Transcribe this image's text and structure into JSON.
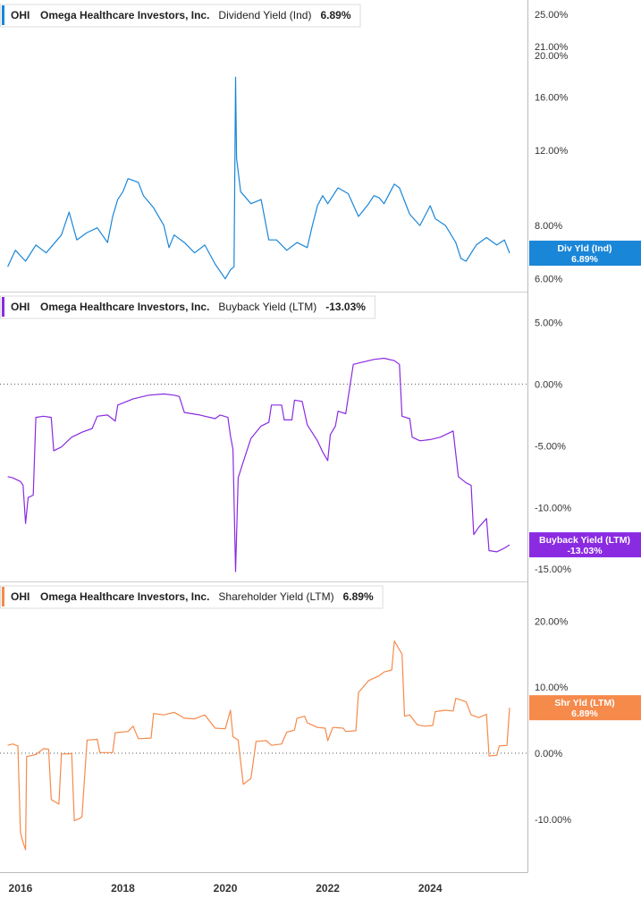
{
  "chart_data": [
    {
      "type": "line",
      "ticker": "OHI",
      "company": "Omega Healthcare Investors, Inc.",
      "metric": "Dividend Yield (Ind)",
      "current_value": "6.89%",
      "badge_label": "Div Yld (Ind)",
      "badge_value": "6.89%",
      "color": "#1a86d8",
      "scale": "log",
      "ylim": [
        5.6,
        27.0
      ],
      "y_ticks": [
        6,
        8,
        12,
        16,
        20,
        21,
        25
      ],
      "y_tick_labels": [
        "6.00%",
        "8.00%",
        "12.00%",
        "16.00%",
        "20.00%",
        "21.00%",
        "25.00%"
      ],
      "zero_line": false,
      "series": [
        {
          "values": [
            [
              2015.75,
              6.4
            ],
            [
              2015.9,
              7.0
            ],
            [
              2016.1,
              6.6
            ],
            [
              2016.3,
              7.2
            ],
            [
              2016.5,
              6.9
            ],
            [
              2016.8,
              7.6
            ],
            [
              2016.95,
              8.6
            ],
            [
              2017.1,
              7.4
            ],
            [
              2017.3,
              7.7
            ],
            [
              2017.5,
              7.9
            ],
            [
              2017.7,
              7.3
            ],
            [
              2017.8,
              8.4
            ],
            [
              2017.9,
              9.2
            ],
            [
              2018.0,
              9.6
            ],
            [
              2018.1,
              10.3
            ],
            [
              2018.3,
              10.1
            ],
            [
              2018.4,
              9.4
            ],
            [
              2018.6,
              8.8
            ],
            [
              2018.8,
              8.0
            ],
            [
              2018.9,
              7.1
            ],
            [
              2019.0,
              7.6
            ],
            [
              2019.2,
              7.3
            ],
            [
              2019.4,
              6.9
            ],
            [
              2019.6,
              7.2
            ],
            [
              2019.8,
              6.5
            ],
            [
              2020.0,
              6.0
            ],
            [
              2020.1,
              6.3
            ],
            [
              2020.17,
              6.4
            ],
            [
              2020.2,
              17.8
            ],
            [
              2020.22,
              11.5
            ],
            [
              2020.3,
              9.6
            ],
            [
              2020.5,
              9.0
            ],
            [
              2020.7,
              9.2
            ],
            [
              2020.85,
              7.4
            ],
            [
              2021.0,
              7.4
            ],
            [
              2021.2,
              7.0
            ],
            [
              2021.4,
              7.3
            ],
            [
              2021.6,
              7.1
            ],
            [
              2021.7,
              8.0
            ],
            [
              2021.8,
              8.9
            ],
            [
              2021.9,
              9.4
            ],
            [
              2022.0,
              9.0
            ],
            [
              2022.2,
              9.8
            ],
            [
              2022.4,
              9.5
            ],
            [
              2022.6,
              8.4
            ],
            [
              2022.8,
              9.0
            ],
            [
              2022.9,
              9.4
            ],
            [
              2023.0,
              9.3
            ],
            [
              2023.1,
              9.0
            ],
            [
              2023.3,
              10.0
            ],
            [
              2023.4,
              9.8
            ],
            [
              2023.6,
              8.5
            ],
            [
              2023.8,
              8.0
            ],
            [
              2024.0,
              8.9
            ],
            [
              2024.1,
              8.3
            ],
            [
              2024.3,
              8.0
            ],
            [
              2024.5,
              7.3
            ],
            [
              2024.6,
              6.7
            ],
            [
              2024.7,
              6.6
            ],
            [
              2024.9,
              7.2
            ],
            [
              2025.1,
              7.5
            ],
            [
              2025.3,
              7.2
            ],
            [
              2025.45,
              7.4
            ],
            [
              2025.55,
              6.89
            ]
          ]
        }
      ]
    },
    {
      "type": "line",
      "ticker": "OHI",
      "company": "Omega Healthcare Investors, Inc.",
      "metric": "Buyback Yield (LTM)",
      "current_value": "-13.03%",
      "badge_label": "Buyback Yield (LTM)",
      "badge_value": "-13.03%",
      "color": "#8a2be2",
      "scale": "linear",
      "ylim": [
        -16.0,
        7.5
      ],
      "y_ticks": [
        5,
        0,
        -5,
        -10,
        -15
      ],
      "y_tick_labels": [
        "5.00%",
        "0.00%",
        "-5.00%",
        "-10.00%",
        "-15.00%"
      ],
      "zero_line": true,
      "series": [
        {
          "values": [
            [
              2015.75,
              -7.5
            ],
            [
              2015.85,
              -7.6
            ],
            [
              2016.0,
              -7.9
            ],
            [
              2016.05,
              -8.2
            ],
            [
              2016.1,
              -11.3
            ],
            [
              2016.15,
              -9.2
            ],
            [
              2016.25,
              -9.0
            ],
            [
              2016.3,
              -2.7
            ],
            [
              2016.45,
              -2.6
            ],
            [
              2016.6,
              -2.7
            ],
            [
              2016.65,
              -5.4
            ],
            [
              2016.8,
              -5.1
            ],
            [
              2017.0,
              -4.3
            ],
            [
              2017.2,
              -3.9
            ],
            [
              2017.4,
              -3.6
            ],
            [
              2017.5,
              -2.6
            ],
            [
              2017.7,
              -2.5
            ],
            [
              2017.85,
              -3.0
            ],
            [
              2017.9,
              -1.7
            ],
            [
              2018.2,
              -1.2
            ],
            [
              2018.5,
              -0.9
            ],
            [
              2018.8,
              -0.8
            ],
            [
              2019.0,
              -0.9
            ],
            [
              2019.1,
              -1.0
            ],
            [
              2019.2,
              -2.3
            ],
            [
              2019.5,
              -2.5
            ],
            [
              2019.8,
              -2.8
            ],
            [
              2019.9,
              -2.5
            ],
            [
              2020.05,
              -2.7
            ],
            [
              2020.1,
              -4.2
            ],
            [
              2020.15,
              -5.3
            ],
            [
              2020.2,
              -15.2
            ],
            [
              2020.25,
              -7.6
            ],
            [
              2020.35,
              -6.3
            ],
            [
              2020.5,
              -4.4
            ],
            [
              2020.7,
              -3.4
            ],
            [
              2020.85,
              -3.1
            ],
            [
              2020.9,
              -1.7
            ],
            [
              2021.1,
              -1.7
            ],
            [
              2021.15,
              -2.9
            ],
            [
              2021.3,
              -2.9
            ],
            [
              2021.35,
              -1.3
            ],
            [
              2021.5,
              -1.4
            ],
            [
              2021.6,
              -3.3
            ],
            [
              2021.8,
              -4.6
            ],
            [
              2021.9,
              -5.5
            ],
            [
              2022.0,
              -6.2
            ],
            [
              2022.05,
              -4.1
            ],
            [
              2022.15,
              -3.4
            ],
            [
              2022.2,
              -2.2
            ],
            [
              2022.35,
              -2.4
            ],
            [
              2022.5,
              1.6
            ],
            [
              2022.7,
              1.8
            ],
            [
              2022.9,
              2.0
            ],
            [
              2023.1,
              2.1
            ],
            [
              2023.3,
              1.9
            ],
            [
              2023.4,
              1.6
            ],
            [
              2023.45,
              -2.6
            ],
            [
              2023.6,
              -2.8
            ],
            [
              2023.65,
              -4.3
            ],
            [
              2023.8,
              -4.6
            ],
            [
              2024.0,
              -4.5
            ],
            [
              2024.2,
              -4.3
            ],
            [
              2024.35,
              -4.0
            ],
            [
              2024.45,
              -3.8
            ],
            [
              2024.55,
              -7.5
            ],
            [
              2024.7,
              -8.0
            ],
            [
              2024.8,
              -8.2
            ],
            [
              2024.85,
              -12.2
            ],
            [
              2024.95,
              -11.6
            ],
            [
              2025.1,
              -10.9
            ],
            [
              2025.15,
              -13.5
            ],
            [
              2025.3,
              -13.6
            ],
            [
              2025.45,
              -13.3
            ],
            [
              2025.55,
              -13.03
            ]
          ]
        }
      ]
    },
    {
      "type": "line",
      "ticker": "OHI",
      "company": "Omega Healthcare Investors, Inc.",
      "metric": "Shareholder Yield (LTM)",
      "current_value": "6.89%",
      "badge_label": "Shr Yld (LTM)",
      "badge_value": "6.89%",
      "color": "#f58a4b",
      "scale": "linear",
      "ylim": [
        -18.0,
        26.0
      ],
      "y_ticks": [
        20,
        10,
        0,
        -10
      ],
      "y_tick_labels": [
        "20.00%",
        "10.00%",
        "0.00%",
        "-10.00%"
      ],
      "zero_line": true,
      "x_ticks": [
        "2016",
        "2018",
        "2020",
        "2022",
        "2024"
      ],
      "x_tick_values": [
        2016,
        2018,
        2020,
        2022,
        2024
      ],
      "xlim": [
        2015.6,
        2025.9
      ],
      "series": [
        {
          "values": [
            [
              2015.75,
              1.2
            ],
            [
              2015.85,
              1.4
            ],
            [
              2015.95,
              1.1
            ],
            [
              2016.0,
              -12.0
            ],
            [
              2016.05,
              -13.5
            ],
            [
              2016.1,
              -14.6
            ],
            [
              2016.12,
              -0.5
            ],
            [
              2016.3,
              -0.2
            ],
            [
              2016.45,
              0.7
            ],
            [
              2016.55,
              0.6
            ],
            [
              2016.6,
              -7.0
            ],
            [
              2016.75,
              -7.7
            ],
            [
              2016.8,
              -0.1
            ],
            [
              2016.95,
              -0.1
            ],
            [
              2017.0,
              0.0
            ],
            [
              2017.05,
              -10.2
            ],
            [
              2017.15,
              -9.9
            ],
            [
              2017.2,
              -9.6
            ],
            [
              2017.3,
              2.0
            ],
            [
              2017.5,
              2.1
            ],
            [
              2017.55,
              0.1
            ],
            [
              2017.8,
              0.1
            ],
            [
              2017.85,
              3.1
            ],
            [
              2018.1,
              3.3
            ],
            [
              2018.2,
              4.1
            ],
            [
              2018.3,
              2.2
            ],
            [
              2018.55,
              2.3
            ],
            [
              2018.6,
              6.0
            ],
            [
              2018.8,
              5.8
            ],
            [
              2019.0,
              6.2
            ],
            [
              2019.2,
              5.3
            ],
            [
              2019.4,
              5.2
            ],
            [
              2019.6,
              5.8
            ],
            [
              2019.8,
              3.8
            ],
            [
              2020.0,
              3.7
            ],
            [
              2020.1,
              6.5
            ],
            [
              2020.15,
              2.5
            ],
            [
              2020.25,
              2.0
            ],
            [
              2020.35,
              -4.7
            ],
            [
              2020.5,
              -3.8
            ],
            [
              2020.6,
              1.8
            ],
            [
              2020.8,
              1.9
            ],
            [
              2020.9,
              1.2
            ],
            [
              2021.1,
              1.4
            ],
            [
              2021.2,
              3.2
            ],
            [
              2021.35,
              3.5
            ],
            [
              2021.4,
              5.3
            ],
            [
              2021.55,
              5.6
            ],
            [
              2021.6,
              4.6
            ],
            [
              2021.8,
              3.9
            ],
            [
              2021.95,
              3.8
            ],
            [
              2022.0,
              1.9
            ],
            [
              2022.1,
              3.9
            ],
            [
              2022.3,
              3.8
            ],
            [
              2022.35,
              3.3
            ],
            [
              2022.55,
              3.4
            ],
            [
              2022.6,
              9.2
            ],
            [
              2022.8,
              11.0
            ],
            [
              2023.0,
              11.7
            ],
            [
              2023.1,
              12.3
            ],
            [
              2023.25,
              12.6
            ],
            [
              2023.3,
              17.0
            ],
            [
              2023.45,
              15.0
            ],
            [
              2023.5,
              5.6
            ],
            [
              2023.6,
              5.8
            ],
            [
              2023.75,
              4.3
            ],
            [
              2023.9,
              4.1
            ],
            [
              2024.05,
              4.2
            ],
            [
              2024.1,
              6.3
            ],
            [
              2024.3,
              6.5
            ],
            [
              2024.45,
              6.4
            ],
            [
              2024.5,
              8.3
            ],
            [
              2024.7,
              7.8
            ],
            [
              2024.8,
              5.8
            ],
            [
              2024.95,
              5.4
            ],
            [
              2025.1,
              5.9
            ],
            [
              2025.15,
              -0.4
            ],
            [
              2025.3,
              -0.3
            ],
            [
              2025.35,
              1.1
            ],
            [
              2025.5,
              1.2
            ],
            [
              2025.55,
              6.89
            ]
          ]
        }
      ]
    }
  ]
}
